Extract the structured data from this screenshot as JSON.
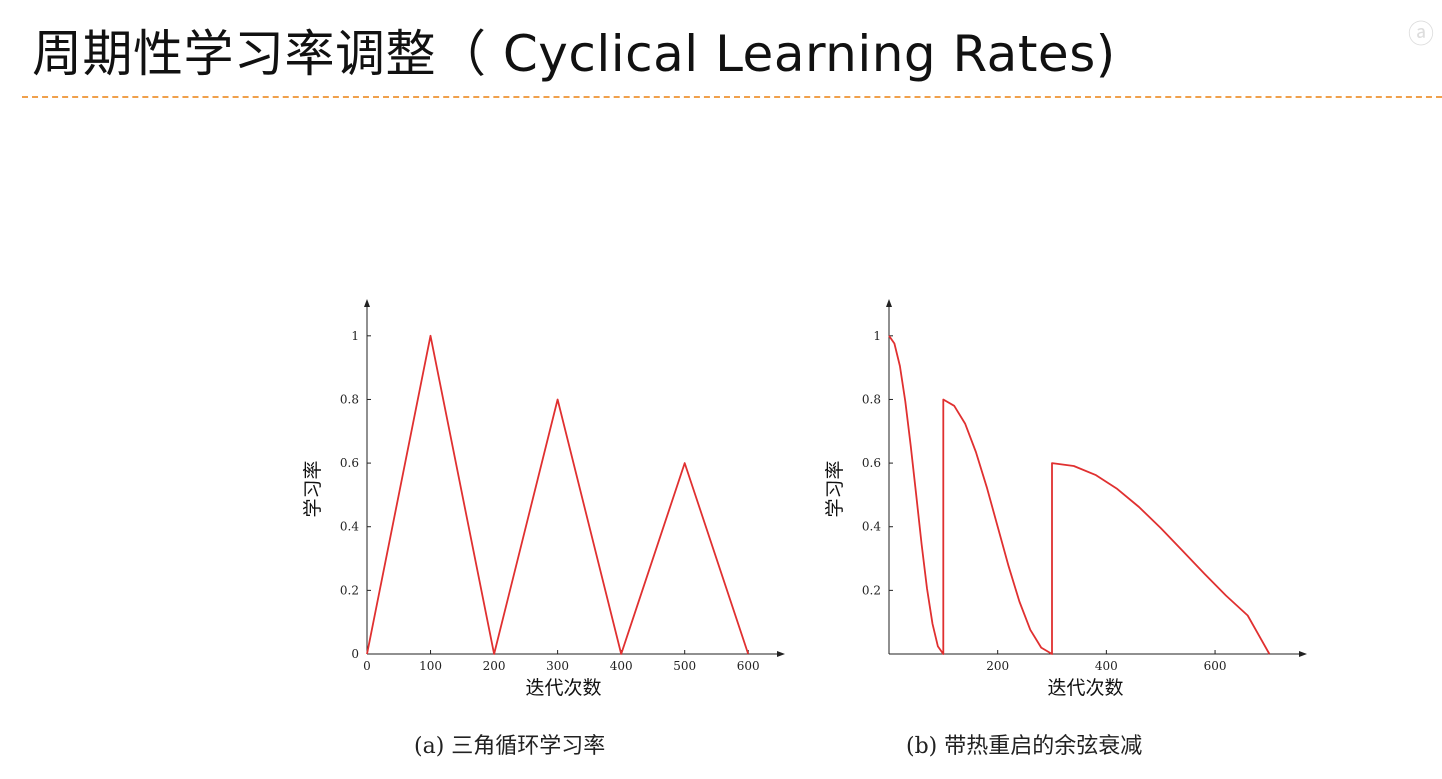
{
  "page": {
    "title": "周期性学习率调整（ Cyclical Learning Rates)",
    "logo_text": "ⓐ",
    "accent_color": "#f0a04b",
    "line_color": "#e03030"
  },
  "chart_data": [
    {
      "id": "a",
      "type": "line",
      "caption": "(a) 三角循环学习率",
      "xlabel": "迭代次数",
      "ylabel": "学习率",
      "xlim": [
        0,
        650
      ],
      "ylim": [
        0,
        1.1
      ],
      "xticks": [
        0,
        100,
        200,
        300,
        400,
        500,
        600
      ],
      "yticks": [
        0,
        0.2,
        0.4,
        0.6,
        0.8,
        1
      ],
      "xtick_labels": [
        "0",
        "100",
        "200",
        "300",
        "400",
        "500",
        "600"
      ],
      "ytick_labels": [
        "0",
        "0.2",
        "0.4",
        "0.6",
        "0.8",
        "1"
      ],
      "series": [
        {
          "x": [
            0,
            100,
            200,
            300,
            400,
            500,
            600
          ],
          "y": [
            0,
            1,
            0,
            0.8,
            0,
            0.6,
            0
          ]
        }
      ]
    },
    {
      "id": "b",
      "type": "line",
      "caption": "(b) 带热重启的余弦衰减",
      "xlabel": "迭代次数",
      "ylabel": "学习率",
      "xlim": [
        0,
        760
      ],
      "ylim": [
        0,
        1.1
      ],
      "xticks": [
        200,
        400,
        600
      ],
      "yticks": [
        0.2,
        0.4,
        0.6,
        0.8,
        1
      ],
      "xtick_labels": [
        "200",
        "400",
        "600"
      ],
      "ytick_labels": [
        "0.2",
        "0.4",
        "0.6",
        "0.8",
        "1"
      ],
      "series": [
        {
          "x": [
            0,
            10,
            20,
            30,
            40,
            50,
            60,
            70,
            80,
            90,
            100,
            100,
            120,
            140,
            160,
            180,
            200,
            220,
            240,
            260,
            280,
            300,
            300,
            340,
            380,
            420,
            460,
            500,
            540,
            580,
            620,
            660,
            700
          ],
          "y": [
            1.0,
            0.976,
            0.905,
            0.794,
            0.655,
            0.5,
            0.345,
            0.206,
            0.095,
            0.024,
            0.0,
            0.8,
            0.78,
            0.724,
            0.635,
            0.524,
            0.4,
            0.276,
            0.165,
            0.076,
            0.02,
            0.0,
            0.6,
            0.591,
            0.563,
            0.519,
            0.462,
            0.396,
            0.325,
            0.253,
            0.184,
            0.121,
            0.0
          ]
        }
      ]
    }
  ]
}
